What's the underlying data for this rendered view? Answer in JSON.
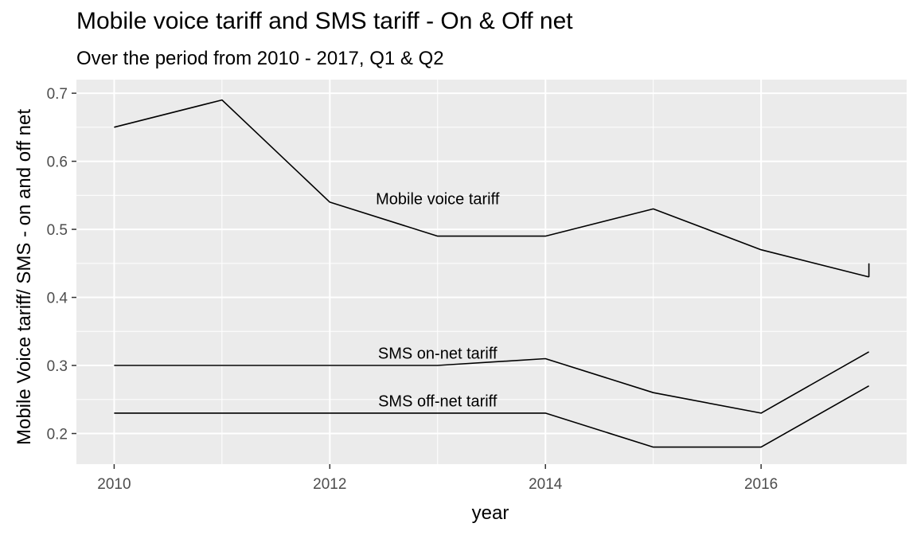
{
  "chart_data": {
    "type": "line",
    "title": "Mobile voice tariff and SMS tariff - On & Off net",
    "subtitle": "Over the period from 2010 - 2017, Q1 & Q2",
    "xlabel": "year",
    "ylabel": "Mobile Voice tariff/ SMS - on and off net",
    "x": [
      2010,
      2011,
      2012,
      2013,
      2014,
      2015,
      2016,
      2017
    ],
    "xlim": [
      2009.65,
      2017.35
    ],
    "ylim": [
      0.155,
      0.72
    ],
    "x_ticks": [
      2010,
      2012,
      2014,
      2016
    ],
    "y_ticks": [
      0.2,
      0.3,
      0.4,
      0.5,
      0.6,
      0.7
    ],
    "x_tick_labels": [
      "2010",
      "2012",
      "2014",
      "2016"
    ],
    "y_tick_labels": [
      "0.2",
      "0.3",
      "0.4",
      "0.5",
      "0.6",
      "0.7"
    ],
    "grid": true,
    "legend": "none",
    "colors": {
      "panel": "#ebebeb",
      "grid": "#ffffff",
      "line": "#000000"
    },
    "series": [
      {
        "name": "Mobile voice tariff",
        "values": [
          0.65,
          0.69,
          0.54,
          0.49,
          0.49,
          0.53,
          0.47,
          0.43
        ],
        "end_tick": 0.45,
        "label_at": [
          2013.0,
          0.545
        ]
      },
      {
        "name": "SMS on-net tariff",
        "values": [
          0.3,
          0.3,
          0.3,
          0.3,
          0.31,
          0.26,
          0.23,
          0.32
        ],
        "label_at": [
          2013.0,
          0.318
        ]
      },
      {
        "name": "SMS off-net tariff",
        "values": [
          0.23,
          0.23,
          0.23,
          0.23,
          0.23,
          0.18,
          0.18,
          0.27
        ],
        "label_at": [
          2013.0,
          0.248
        ]
      }
    ]
  }
}
